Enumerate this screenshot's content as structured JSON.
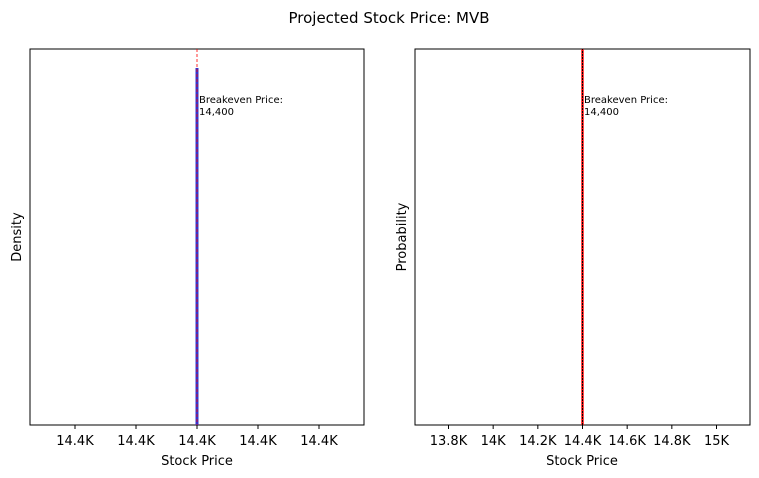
{
  "title": "Projected Stock Price: MVB",
  "chart_data": [
    {
      "type": "bar",
      "panel": "density-histogram",
      "xlabel": "Stock Price",
      "ylabel": "Density",
      "x_tick_labels": [
        "14.4K",
        "14.4K",
        "14.4K",
        "14.4K",
        "14.4K"
      ],
      "y_ticks_shown": false,
      "series": [
        {
          "x": 14400,
          "value": 1.0
        }
      ],
      "breakeven": {
        "label": "Breakeven Price:",
        "value": "14,400",
        "x": 14400
      },
      "bar_color": "#3333cc",
      "breakeven_color": "#ff0000",
      "grid": false
    },
    {
      "type": "line",
      "panel": "cumulative-probability",
      "xlabel": "Stock Price",
      "ylabel": "Probability",
      "x_ticks": [
        13800,
        14000,
        14200,
        14400,
        14600,
        14800,
        15000
      ],
      "x_tick_labels": [
        "13.8K",
        "14K",
        "14.2K",
        "14.4K",
        "14.6K",
        "14.8K",
        "15K"
      ],
      "xlim": [
        13650,
        15150
      ],
      "y_ticks_shown": false,
      "series": [
        {
          "x": [
            14400,
            14400
          ],
          "y": [
            0,
            1
          ]
        }
      ],
      "breakeven": {
        "label": "Breakeven Price:",
        "value": "14,400",
        "x": 14400
      },
      "line_color": "#000000",
      "breakeven_color": "#ff0000",
      "grid": false
    }
  ]
}
